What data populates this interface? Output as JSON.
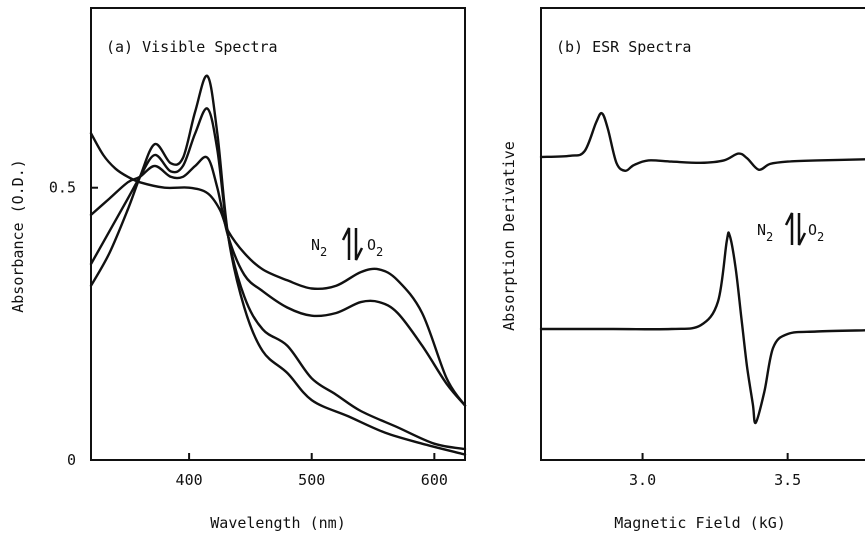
{
  "chart_data": [
    {
      "type": "line",
      "title": "(a) Visible Spectra",
      "xlabel": "Wavelength (nm)",
      "ylabel": "Absorbance (O.D.)",
      "xlim": [
        320,
        625
      ],
      "ylim": [
        0,
        0.83
      ],
      "xticks": [
        400,
        500,
        600
      ],
      "xtick_labels": [
        "400",
        "500",
        "600"
      ],
      "yticks": [
        0,
        0.5
      ],
      "ytick_labels": [
        "0",
        "0.5"
      ],
      "annotation": {
        "left": "N",
        "left_sub": "2",
        "right": "O",
        "right_sub": "2"
      },
      "series": [
        {
          "x": [
            320,
            335,
            350,
            360,
            372,
            385,
            395,
            405,
            415,
            423,
            432,
            445,
            460,
            480,
            500,
            530,
            560,
            590,
            625
          ],
          "y": [
            0.32,
            0.38,
            0.46,
            0.52,
            0.58,
            0.545,
            0.555,
            0.64,
            0.705,
            0.6,
            0.41,
            0.28,
            0.2,
            0.16,
            0.11,
            0.08,
            0.05,
            0.03,
            0.01
          ]
        },
        {
          "x": [
            320,
            335,
            350,
            360,
            372,
            385,
            395,
            405,
            415,
            423,
            432,
            445,
            460,
            480,
            500,
            520,
            540,
            570,
            600,
            625
          ],
          "y": [
            0.36,
            0.42,
            0.48,
            0.52,
            0.56,
            0.53,
            0.54,
            0.6,
            0.645,
            0.57,
            0.41,
            0.3,
            0.24,
            0.21,
            0.15,
            0.12,
            0.09,
            0.06,
            0.03,
            0.02
          ]
        },
        {
          "x": [
            320,
            335,
            350,
            360,
            372,
            385,
            395,
            405,
            415,
            423,
            432,
            445,
            460,
            480,
            500,
            520,
            540,
            555,
            570,
            590,
            610,
            625
          ],
          "y": [
            0.45,
            0.48,
            0.51,
            0.52,
            0.54,
            0.52,
            0.52,
            0.54,
            0.555,
            0.5,
            0.41,
            0.34,
            0.31,
            0.28,
            0.265,
            0.27,
            0.29,
            0.29,
            0.27,
            0.21,
            0.14,
            0.1
          ]
        },
        {
          "x": [
            320,
            330,
            340,
            350,
            360,
            380,
            400,
            415,
            425,
            432,
            445,
            460,
            480,
            500,
            520,
            540,
            555,
            570,
            590,
            610,
            625
          ],
          "y": [
            0.6,
            0.56,
            0.535,
            0.52,
            0.51,
            0.5,
            0.5,
            0.49,
            0.46,
            0.42,
            0.38,
            0.35,
            0.33,
            0.315,
            0.32,
            0.345,
            0.35,
            0.33,
            0.27,
            0.15,
            0.1
          ]
        }
      ]
    },
    {
      "type": "line",
      "title": "(b) ESR Spectra",
      "xlabel": "Magnetic Field (kG)",
      "ylabel": "Absorption Derivative",
      "xlim": [
        2.65,
        3.77
      ],
      "xticks": [
        3.0,
        3.5
      ],
      "xtick_labels": [
        "3.0",
        "3.5"
      ],
      "annotation": {
        "left": "N",
        "left_sub": "2",
        "right": "O",
        "right_sub": "2"
      },
      "series": [
        {
          "x": [
            2.65,
            2.75,
            2.8,
            2.84,
            2.86,
            2.88,
            2.91,
            2.94,
            2.97,
            3.02,
            3.1,
            3.2,
            3.28,
            3.33,
            3.36,
            3.4,
            3.44,
            3.5,
            3.6,
            3.77
          ],
          "y": [
            0.0,
            0.01,
            0.05,
            0.3,
            0.38,
            0.25,
            -0.05,
            -0.12,
            -0.07,
            -0.03,
            -0.04,
            -0.05,
            -0.03,
            0.03,
            -0.01,
            -0.11,
            -0.06,
            -0.04,
            -0.03,
            -0.02
          ]
        },
        {
          "x": [
            2.65,
            2.9,
            3.1,
            3.2,
            3.26,
            3.29,
            3.3,
            3.32,
            3.34,
            3.36,
            3.38,
            3.39,
            3.42,
            3.45,
            3.5,
            3.6,
            3.77
          ],
          "y": [
            0.0,
            0.0,
            0.0,
            0.03,
            0.22,
            0.7,
            0.75,
            0.5,
            0.1,
            -0.3,
            -0.6,
            -0.75,
            -0.5,
            -0.15,
            -0.04,
            -0.02,
            -0.01
          ]
        }
      ]
    }
  ]
}
